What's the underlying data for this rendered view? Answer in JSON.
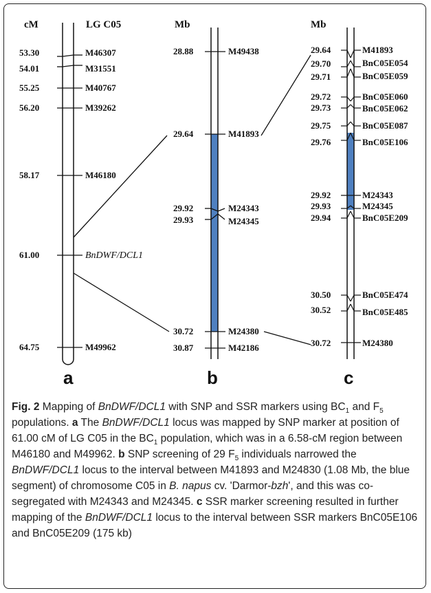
{
  "headers": {
    "cm": "cM",
    "lg": "LG C05",
    "mb_b": "Mb",
    "mb_c": "Mb"
  },
  "panel_labels": {
    "a": "a",
    "b": "b",
    "c": "c"
  },
  "linkage_a": {
    "markers": [
      {
        "pos": "53.30",
        "name": "M46307"
      },
      {
        "pos": "54.01",
        "name": "M31551"
      },
      {
        "pos": "55.25",
        "name": "M40767"
      },
      {
        "pos": "56.20",
        "name": "M39262"
      },
      {
        "pos": "58.17",
        "name": "M46180"
      },
      {
        "pos": "61.00",
        "name": "BnDWF/DCL1"
      },
      {
        "pos": "64.75",
        "name": "M49962"
      }
    ]
  },
  "physical_b": {
    "markers": [
      {
        "pos": "28.88",
        "name": "M49438"
      },
      {
        "pos": "29.64",
        "name": "M41893"
      },
      {
        "pos": "29.92",
        "name": "M24343"
      },
      {
        "pos": "29.93",
        "name": "M24345"
      },
      {
        "pos": "30.72",
        "name": "M24380"
      },
      {
        "pos": "30.87",
        "name": "M42186"
      }
    ]
  },
  "physical_c": {
    "markers": [
      {
        "pos": "29.64",
        "name": "M41893"
      },
      {
        "pos": "29.70",
        "name": "BnC05E054"
      },
      {
        "pos": "29.71",
        "name": "BnC05E059"
      },
      {
        "pos": "29.72",
        "name": "BnC05E060"
      },
      {
        "pos": "29.73",
        "name": "BnC05E062"
      },
      {
        "pos": "29.75",
        "name": "BnC05E087"
      },
      {
        "pos": "29.76",
        "name": "BnC05E106"
      },
      {
        "pos": "29.92",
        "name": "M24343"
      },
      {
        "pos": "29.93",
        "name": "M24345"
      },
      {
        "pos": "29.94",
        "name": "BnC05E209"
      },
      {
        "pos": "30.50",
        "name": "BnC05E474"
      },
      {
        "pos": "30.52",
        "name": "BnC05E485"
      },
      {
        "pos": "30.72",
        "name": "M24380"
      }
    ]
  },
  "colors": {
    "highlight": "#4f80c0",
    "line": "#111111"
  },
  "caption": {
    "fig": "Fig. 2",
    "p1": " Mapping of ",
    "gene1": "BnDWF/DCL1",
    "p2": " with SNP and SSR markers using BC",
    "sub1": "1",
    "p3": " and F",
    "sub2": "5",
    "p4": " populations. ",
    "la": "a",
    "p5": " The ",
    "gene2": "BnDWF/DCL1",
    "p6": " locus was mapped by SNP marker at position of 61.00 cM of LG C05 in the BC",
    "sub3": "1",
    "p7": " population, which was in a 6.58-cM region between M46180 and M49962. ",
    "lb": "b",
    "p8": " SNP screening of 29 F",
    "sub4": "5",
    "p9": " individuals narrowed the ",
    "gene3": "BnDWF/DCL1",
    "p10": " locus to the interval between M41893 and M24830 (1.08 Mb, the blue segment) of chromosome C05 in ",
    "species": "B. napus",
    "p11": " cv. 'Darmor-",
    "cultivar": "bzh",
    "p12": "', and this was co-segregated with M24343 and M24345. ",
    "lc": "c",
    "p13": " SSR marker screening resulted in further mapping of the ",
    "gene4": "BnDWF/DCL1",
    "p14": " locus to the interval between SSR markers BnC05E106 and BnC05E209 (175 kb)"
  }
}
